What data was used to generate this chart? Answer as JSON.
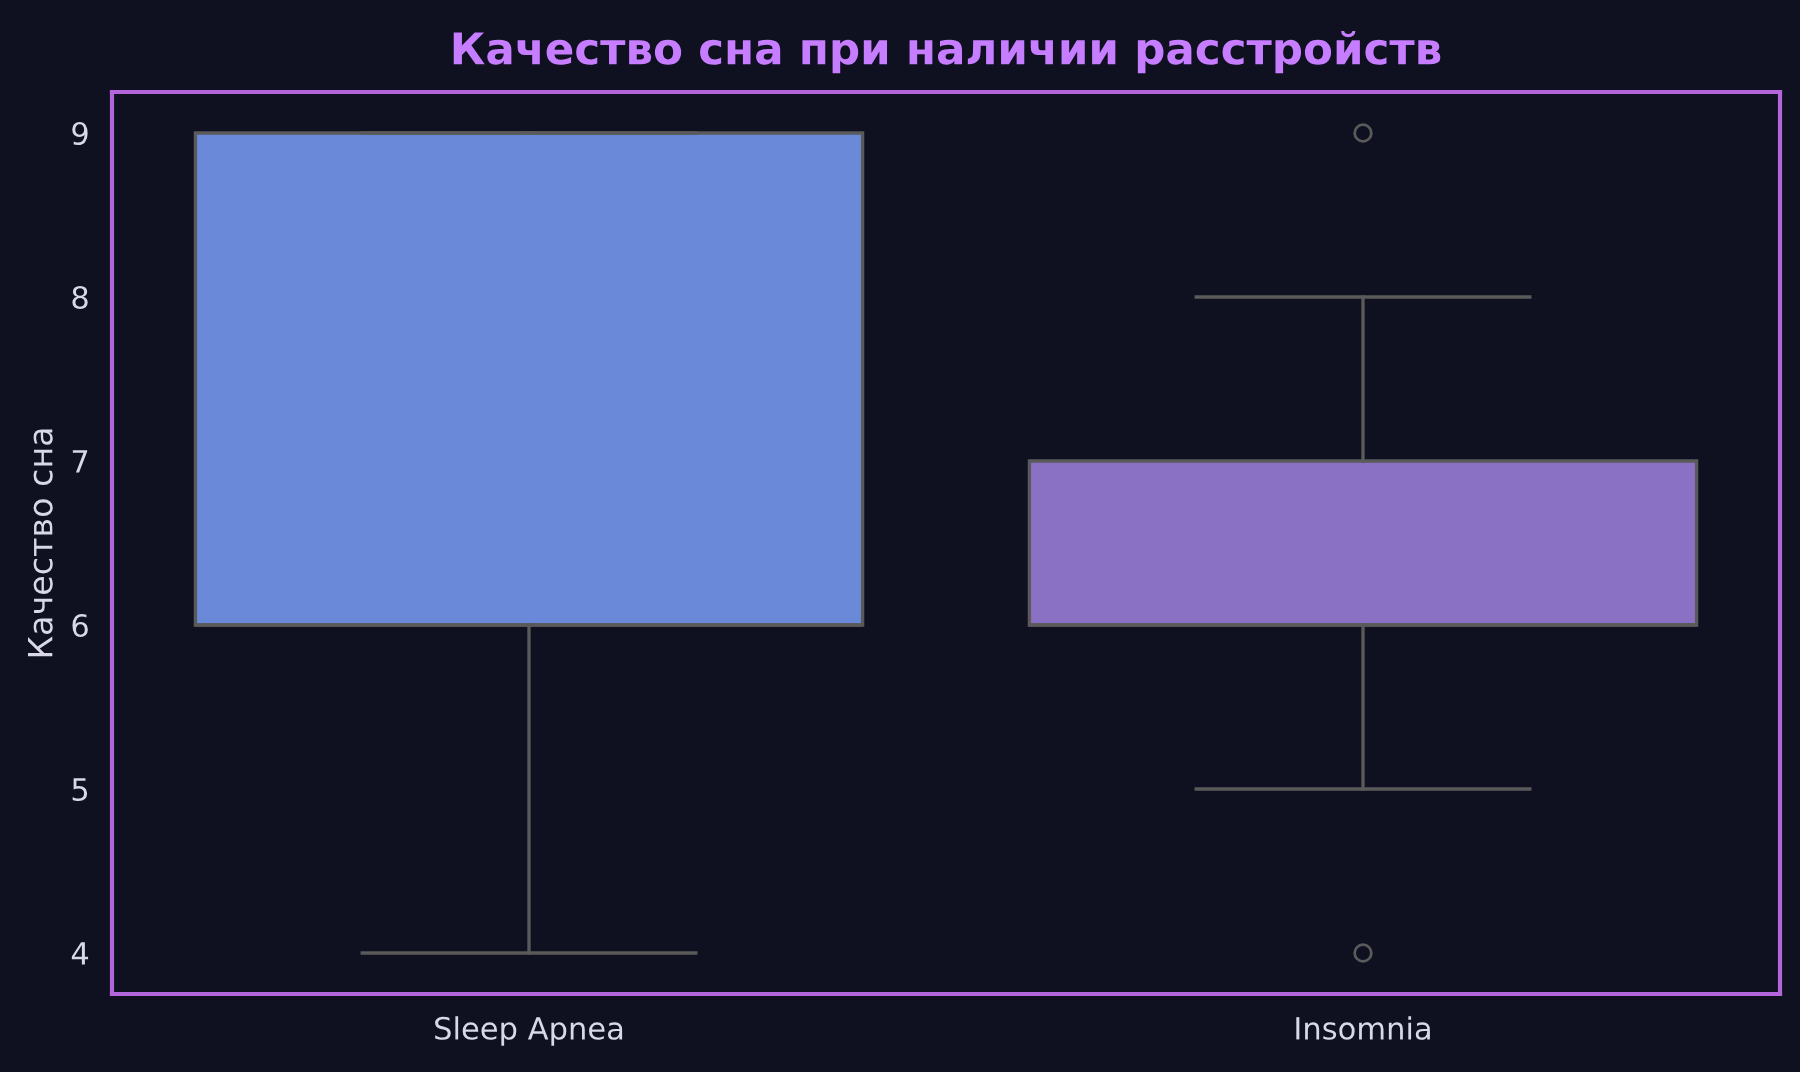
{
  "chart_data": {
    "type": "box",
    "title": "Качество сна при наличии расстройств",
    "ylabel": "Качество сна",
    "categories": [
      "Sleep Apnea",
      "Insomnia"
    ],
    "boxes": [
      {
        "low": 4,
        "q1": 6,
        "median": 6,
        "q3": 9,
        "high": 9
      },
      {
        "low": 5,
        "q1": 6,
        "median": 6,
        "q3": 7,
        "high": 8,
        "outliers": [
          9,
          4
        ]
      }
    ],
    "colors": [
      "#6a89d9",
      "#8b71c4"
    ],
    "ylim": [
      3.75,
      9.25
    ],
    "yticks": [
      4,
      5,
      6,
      7,
      8,
      9
    ],
    "legend": false
  }
}
